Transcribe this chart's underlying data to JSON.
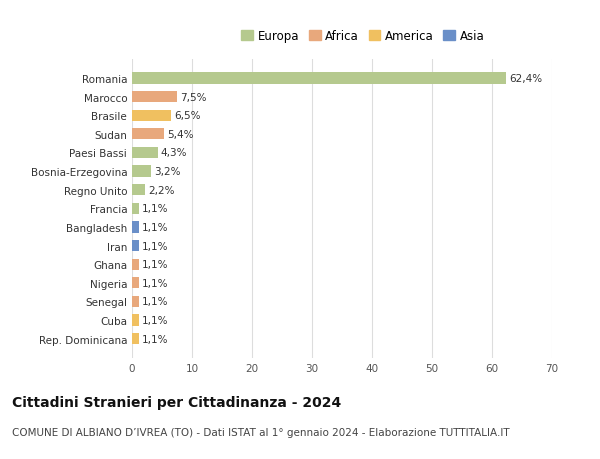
{
  "categories": [
    "Romania",
    "Marocco",
    "Brasile",
    "Sudan",
    "Paesi Bassi",
    "Bosnia-Erzegovina",
    "Regno Unito",
    "Francia",
    "Bangladesh",
    "Iran",
    "Ghana",
    "Nigeria",
    "Senegal",
    "Cuba",
    "Rep. Dominicana"
  ],
  "values": [
    62.4,
    7.5,
    6.5,
    5.4,
    4.3,
    3.2,
    2.2,
    1.1,
    1.1,
    1.1,
    1.1,
    1.1,
    1.1,
    1.1,
    1.1
  ],
  "colors": [
    "#b5c98e",
    "#e8a87c",
    "#f0c060",
    "#e8a87c",
    "#b5c98e",
    "#b5c98e",
    "#b5c98e",
    "#b5c98e",
    "#6a8fc8",
    "#6a8fc8",
    "#e8a87c",
    "#e8a87c",
    "#e8a87c",
    "#f0c060",
    "#f0c060"
  ],
  "labels": [
    "62,4%",
    "7,5%",
    "6,5%",
    "5,4%",
    "4,3%",
    "3,2%",
    "2,2%",
    "1,1%",
    "1,1%",
    "1,1%",
    "1,1%",
    "1,1%",
    "1,1%",
    "1,1%",
    "1,1%"
  ],
  "legend_labels": [
    "Europa",
    "Africa",
    "America",
    "Asia"
  ],
  "legend_colors": [
    "#b5c98e",
    "#e8a87c",
    "#f0c060",
    "#6a8fc8"
  ],
  "xlim": [
    0,
    70
  ],
  "xticks": [
    0,
    10,
    20,
    30,
    40,
    50,
    60,
    70
  ],
  "title": "Cittadini Stranieri per Cittadinanza - 2024",
  "subtitle": "COMUNE DI ALBIANO D’IVREA (TO) - Dati ISTAT al 1° gennaio 2024 - Elaborazione TUTTITALIA.IT",
  "background_color": "#ffffff",
  "grid_color": "#dddddd",
  "bar_height": 0.6,
  "title_fontsize": 10,
  "subtitle_fontsize": 7.5,
  "label_fontsize": 7.5,
  "tick_fontsize": 7.5,
  "legend_fontsize": 8.5
}
